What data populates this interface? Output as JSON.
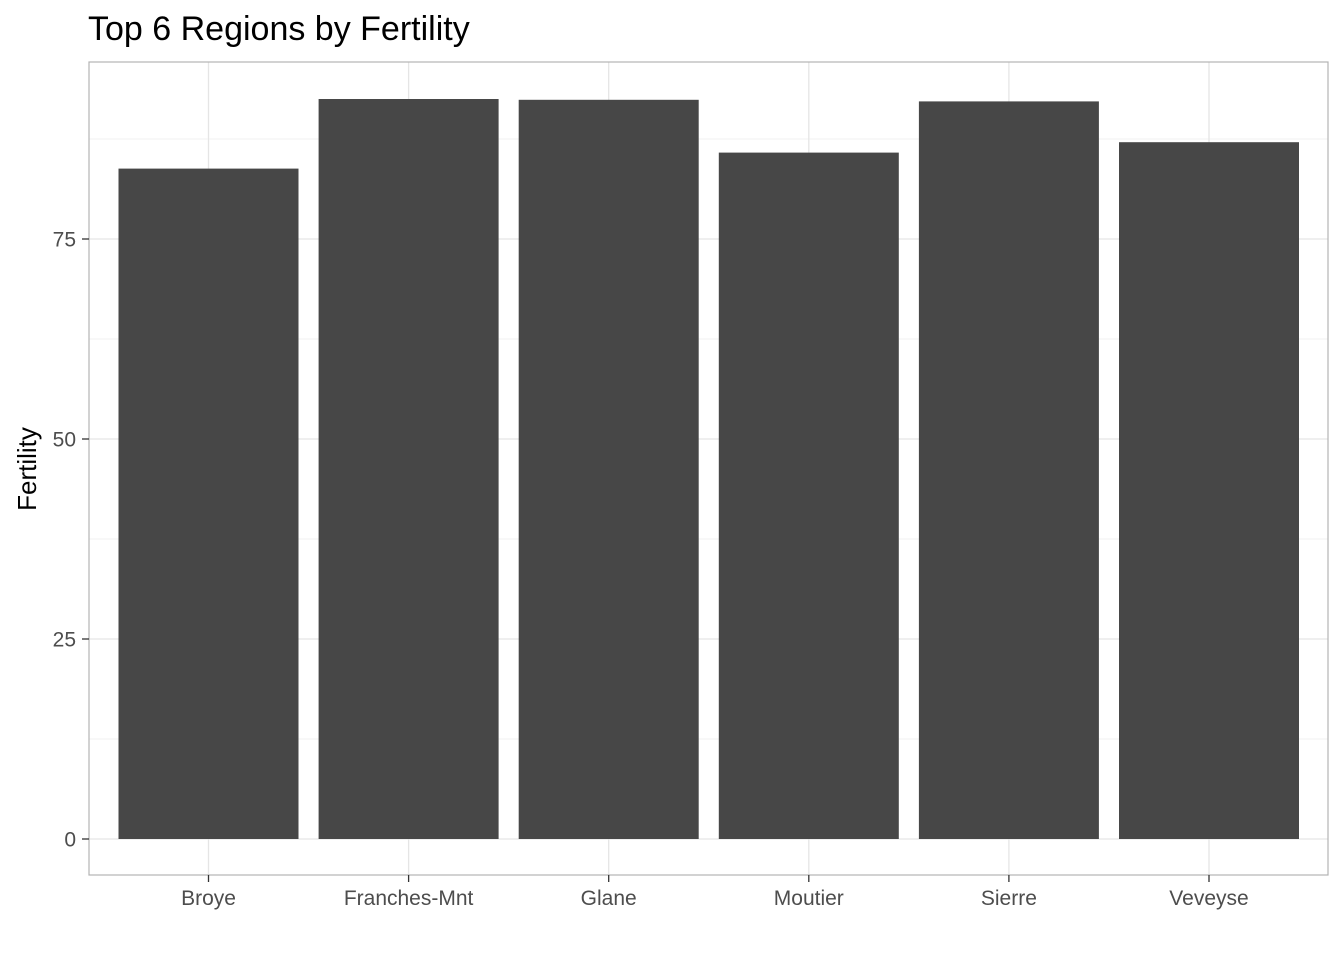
{
  "chart_data": {
    "type": "bar",
    "title": "Top 6 Regions by Fertility",
    "xlabel": "",
    "ylabel": "Fertility",
    "categories": [
      "Broye",
      "Franches-Mnt",
      "Glane",
      "Moutier",
      "Sierre",
      "Veveyse"
    ],
    "values": [
      83.8,
      92.5,
      92.4,
      85.8,
      92.2,
      87.1
    ],
    "ylim": [
      0,
      97.1
    ],
    "yticks": [
      0,
      25,
      50,
      75
    ],
    "ytick_labels": [
      "0",
      "25",
      "50",
      "75"
    ],
    "grid": true,
    "legend": "none",
    "colors": {
      "bar": "#474747",
      "grid_major": "#e5e5e5",
      "grid_minor": "#f2f2f2",
      "panel_border": "#b3b3b3",
      "tick_label": "#4d4d4d"
    }
  }
}
